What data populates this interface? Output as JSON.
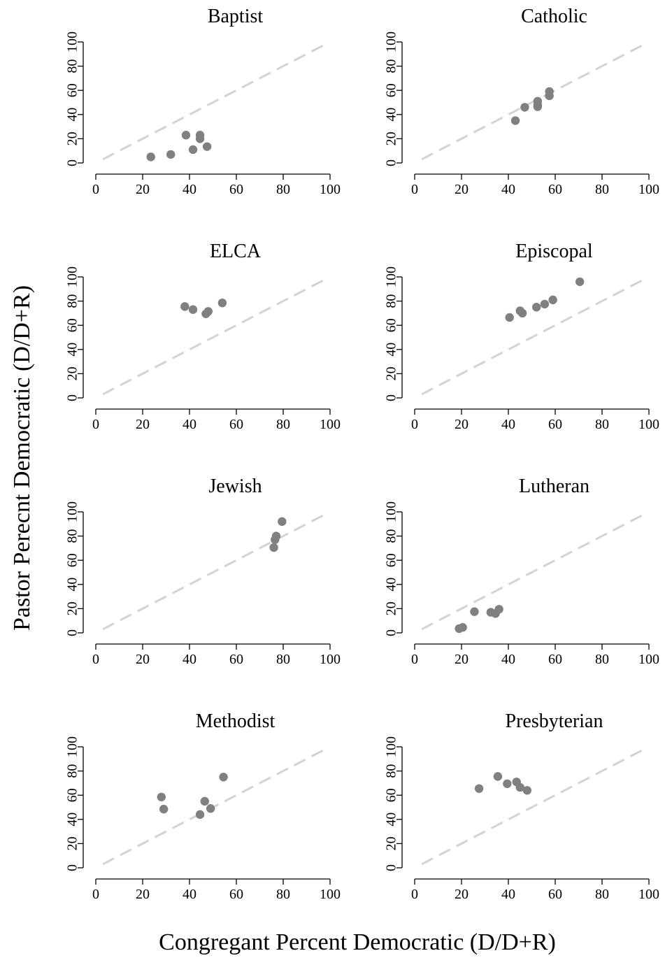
{
  "chart_data": {
    "type": "scatter",
    "xlabel": "Congregant Percent Democratic (D/D+R)",
    "ylabel": "Pastor Perecnt Democratic (D/D+R)",
    "xlim": [
      0,
      100
    ],
    "ylim": [
      0,
      100
    ],
    "xticks": [
      0,
      20,
      40,
      60,
      80,
      100
    ],
    "yticks": [
      0,
      20,
      40,
      60,
      80,
      100
    ],
    "reference_line": {
      "style": "dashed",
      "color": "#d3d3d3",
      "from": [
        3,
        3
      ],
      "to": [
        97,
        97
      ]
    },
    "point_color": "#808080",
    "panels": [
      {
        "title": "Baptist",
        "points": [
          [
            23.5,
            5
          ],
          [
            32,
            7
          ],
          [
            38.5,
            23
          ],
          [
            41.5,
            11
          ],
          [
            44.5,
            23
          ],
          [
            44.5,
            20
          ],
          [
            47.5,
            13.5
          ]
        ]
      },
      {
        "title": "Catholic",
        "points": [
          [
            43,
            35
          ],
          [
            47,
            46
          ],
          [
            52.5,
            51
          ],
          [
            52.5,
            46.5
          ],
          [
            52.5,
            48
          ],
          [
            57.5,
            59
          ],
          [
            57.5,
            55.5
          ]
        ]
      },
      {
        "title": "ELCA",
        "points": [
          [
            38,
            75.5
          ],
          [
            41.5,
            73
          ],
          [
            47,
            69.5
          ],
          [
            48,
            71.5
          ],
          [
            54,
            78.5
          ]
        ]
      },
      {
        "title": "Episcopal",
        "points": [
          [
            40.5,
            66.5
          ],
          [
            45,
            72
          ],
          [
            46,
            70
          ],
          [
            52,
            75
          ],
          [
            55.5,
            77.5
          ],
          [
            59,
            81
          ],
          [
            70.5,
            96
          ]
        ]
      },
      {
        "title": "Jewish",
        "points": [
          [
            76,
            70.5
          ],
          [
            76.5,
            77
          ],
          [
            77,
            80
          ],
          [
            79.5,
            92
          ]
        ]
      },
      {
        "title": "Lutheran",
        "points": [
          [
            19,
            3.5
          ],
          [
            20.5,
            4.5
          ],
          [
            25.5,
            17.5
          ],
          [
            32.5,
            17
          ],
          [
            34.5,
            16
          ],
          [
            36,
            19.5
          ]
        ]
      },
      {
        "title": "Methodist",
        "points": [
          [
            28,
            58.5
          ],
          [
            29,
            48.5
          ],
          [
            44.5,
            44
          ],
          [
            46.5,
            55
          ],
          [
            49,
            49
          ],
          [
            54.5,
            75
          ]
        ]
      },
      {
        "title": "Presbyterian",
        "points": [
          [
            27.5,
            65.5
          ],
          [
            35.5,
            75.5
          ],
          [
            39.5,
            69.5
          ],
          [
            43.5,
            71
          ],
          [
            45,
            66.5
          ],
          [
            48,
            64
          ]
        ]
      }
    ]
  }
}
